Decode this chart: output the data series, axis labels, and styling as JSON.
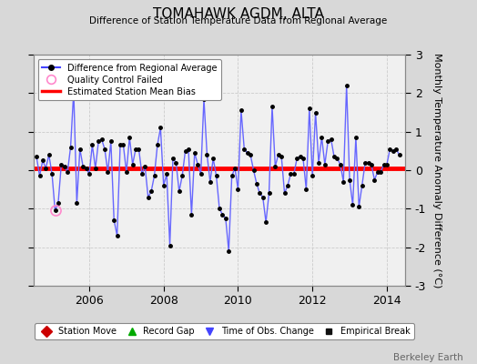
{
  "title": "TOMAHAWK AGDM, ALTA",
  "subtitle": "Difference of Station Temperature Data from Regional Average",
  "ylabel": "Monthly Temperature Anomaly Difference (°C)",
  "bias_value": 0.05,
  "ylim": [
    -3,
    3
  ],
  "yticks": [
    -3,
    -2,
    -1,
    0,
    1,
    2,
    3
  ],
  "xlim_start": 2004.5,
  "xlim_end": 2014.5,
  "xticks": [
    2006,
    2008,
    2010,
    2012,
    2014
  ],
  "background_color": "#d8d8d8",
  "plot_bg_color": "#f0f0f0",
  "line_color": "#6666ff",
  "marker_color": "#000000",
  "bias_color": "#ff0000",
  "qc_fail_x": [
    2005.083
  ],
  "qc_fail_y": [
    -1.05
  ],
  "data_x": [
    2004.583,
    2004.667,
    2004.75,
    2004.833,
    2004.917,
    2005.0,
    2005.083,
    2005.167,
    2005.25,
    2005.333,
    2005.417,
    2005.5,
    2005.583,
    2005.667,
    2005.75,
    2005.833,
    2005.917,
    2006.0,
    2006.083,
    2006.167,
    2006.25,
    2006.333,
    2006.417,
    2006.5,
    2006.583,
    2006.667,
    2006.75,
    2006.833,
    2006.917,
    2007.0,
    2007.083,
    2007.167,
    2007.25,
    2007.333,
    2007.417,
    2007.5,
    2007.583,
    2007.667,
    2007.75,
    2007.833,
    2007.917,
    2008.0,
    2008.083,
    2008.167,
    2008.25,
    2008.333,
    2008.417,
    2008.5,
    2008.583,
    2008.667,
    2008.75,
    2008.833,
    2008.917,
    2009.0,
    2009.083,
    2009.167,
    2009.25,
    2009.333,
    2009.417,
    2009.5,
    2009.583,
    2009.667,
    2009.75,
    2009.833,
    2009.917,
    2010.0,
    2010.083,
    2010.167,
    2010.25,
    2010.333,
    2010.417,
    2010.5,
    2010.583,
    2010.667,
    2010.75,
    2010.833,
    2010.917,
    2011.0,
    2011.083,
    2011.167,
    2011.25,
    2011.333,
    2011.417,
    2011.5,
    2011.583,
    2011.667,
    2011.75,
    2011.833,
    2011.917,
    2012.0,
    2012.083,
    2012.167,
    2012.25,
    2012.333,
    2012.417,
    2012.5,
    2012.583,
    2012.667,
    2012.75,
    2012.833,
    2012.917,
    2013.0,
    2013.083,
    2013.167,
    2013.25,
    2013.333,
    2013.417,
    2013.5,
    2013.583,
    2013.667,
    2013.75,
    2013.833,
    2013.917,
    2014.0,
    2014.083,
    2014.167,
    2014.25,
    2014.333
  ],
  "data_y": [
    0.35,
    -0.15,
    0.25,
    0.05,
    0.4,
    -0.1,
    -1.05,
    -0.85,
    0.15,
    0.1,
    -0.05,
    0.6,
    2.05,
    -0.85,
    0.55,
    0.1,
    0.05,
    -0.1,
    0.65,
    0.05,
    0.75,
    0.8,
    0.55,
    -0.05,
    0.75,
    -1.3,
    -1.7,
    0.65,
    0.65,
    -0.05,
    0.85,
    0.15,
    0.55,
    0.55,
    -0.1,
    0.1,
    -0.7,
    -0.55,
    -0.15,
    0.65,
    1.1,
    -0.4,
    -0.1,
    -1.95,
    0.3,
    0.2,
    -0.55,
    -0.15,
    0.5,
    0.55,
    -1.15,
    0.45,
    0.15,
    -0.1,
    1.85,
    0.4,
    -0.3,
    0.3,
    -0.15,
    -1.0,
    -1.15,
    -1.25,
    -2.1,
    -0.15,
    0.05,
    -0.5,
    1.55,
    0.55,
    0.45,
    0.4,
    0.0,
    -0.35,
    -0.6,
    -0.7,
    -1.35,
    -0.6,
    1.65,
    0.1,
    0.4,
    0.35,
    -0.6,
    -0.4,
    -0.1,
    -0.1,
    0.3,
    0.35,
    0.3,
    -0.5,
    1.6,
    -0.15,
    1.5,
    0.2,
    0.85,
    0.15,
    0.75,
    0.8,
    0.35,
    0.3,
    0.15,
    -0.3,
    2.2,
    -0.25,
    -0.9,
    0.85,
    -0.95,
    -0.4,
    0.2,
    0.2,
    0.15,
    -0.25,
    -0.05,
    -0.05,
    0.15,
    0.15,
    0.55,
    0.5,
    0.55,
    0.4
  ],
  "footer_text": "Berkeley Earth",
  "grid_color": "#cccccc",
  "grid_linestyle": "--"
}
